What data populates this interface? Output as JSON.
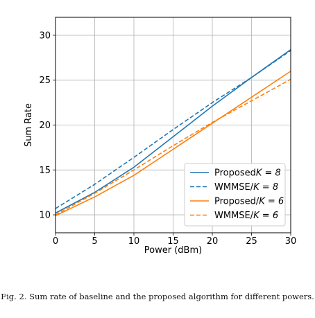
{
  "chart_data": {
    "type": "line",
    "xlabel": "Power (dBm)",
    "ylabel": "Sum Rate",
    "xlim": [
      0,
      30
    ],
    "ylim": [
      8,
      32
    ],
    "xticks": [
      0,
      5,
      10,
      15,
      20,
      25,
      30
    ],
    "yticks": [
      10,
      15,
      20,
      25,
      30
    ],
    "grid": true,
    "legend_position": "lower-right",
    "x": [
      0,
      5,
      10,
      15,
      20,
      25,
      30
    ],
    "series": [
      {
        "name": "Proposed$K=8$",
        "label_main": "Proposed",
        "label_math": "K = 8",
        "color": "#1f77b4",
        "style": "solid",
        "values": [
          10.2,
          12.5,
          15.3,
          18.7,
          22.1,
          25.3,
          28.4
        ]
      },
      {
        "name": "WMMSE/$K=8$",
        "label_main": "WMMSE/",
        "label_math": "K = 8",
        "color": "#1f77b4",
        "style": "dashed",
        "values": [
          10.7,
          13.4,
          16.4,
          19.5,
          22.5,
          25.3,
          28.3
        ]
      },
      {
        "name": "Proposed/$K=6$",
        "label_main": "Proposed/",
        "label_math": "K = 6",
        "color": "#ff7f0e",
        "style": "solid",
        "values": [
          9.9,
          12.0,
          14.4,
          17.3,
          20.2,
          23.1,
          26.0
        ]
      },
      {
        "name": "WMMSE/$K=6$",
        "label_main": "WMMSE/",
        "label_math": "K = 6",
        "color": "#ff7f0e",
        "style": "dashed",
        "values": [
          10.0,
          12.4,
          15.0,
          17.7,
          20.3,
          22.7,
          25.1
        ]
      }
    ]
  },
  "caption": "Fig. 2.  Sum rate of baseline and the proposed algorithm for different powers."
}
